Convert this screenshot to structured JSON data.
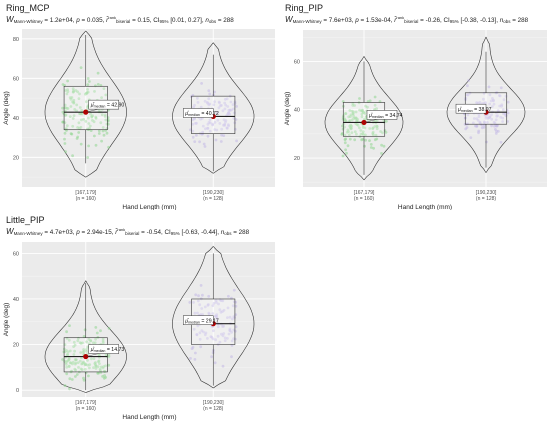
{
  "chart_data": [
    {
      "type": "violin",
      "title": "Ring_MCP",
      "stats": {
        "W_label": "W",
        "W_sub": "Mann-Whitney",
        "W_value": "= 1.2e+04,",
        "p_label": "p",
        "p_value": "= 0.035,",
        "r_sub": "biserial",
        "r_sup": "rank",
        "r_value": "= 0.15,",
        "ci_sub": "95%",
        "ci_value": "[0.01, 0.27],",
        "n_sub": "obs",
        "n_value": "= 288"
      },
      "xlabel": "Hand Length (mm)",
      "ylabel": "Angle (deg)",
      "ylim": [
        5,
        85
      ],
      "yticks": [
        20,
        40,
        60,
        80
      ],
      "categories": [
        "[167,179]\n(n = 160)",
        "[190,230]\n(n = 128)"
      ],
      "groups": [
        {
          "category": "[167,179]",
          "n_label": "(n = 160)",
          "median": 42.9,
          "median_label": "= 42.90",
          "q1": 34,
          "q3": 56,
          "whisker_low": 17,
          "whisker_high": 82,
          "violin_min": 10,
          "violin_max": 84,
          "color": "#8fd68f"
        },
        {
          "category": "[190,230]",
          "n_label": "(n = 128)",
          "median": 40.72,
          "median_label": "= 40.72",
          "q1": 32,
          "q3": 51,
          "whisker_low": 13,
          "whisker_high": 72,
          "violin_min": 12,
          "violin_max": 78,
          "color": "#c2b8e6"
        }
      ]
    },
    {
      "type": "violin",
      "title": "Ring_PIP",
      "stats": {
        "W_label": "W",
        "W_sub": "Mann-Whitney",
        "W_value": "= 7.6e+03,",
        "p_label": "p",
        "p_value": "= 1.53e-04,",
        "r_sub": "biserial",
        "r_sup": "rank",
        "r_value": "= -0.26,",
        "ci_sub": "95%",
        "ci_value": "[-0.38, -0.13],",
        "n_sub": "obs",
        "n_value": "= 288"
      },
      "xlabel": "Hand Length (mm)",
      "ylabel": "Angle (deg)",
      "ylim": [
        8,
        73
      ],
      "yticks": [
        20,
        40,
        60
      ],
      "categories": [
        "[167,179]\n(n = 160)",
        "[190,230]\n(n = 128)"
      ],
      "groups": [
        {
          "category": "[167,179]",
          "n_label": "(n = 160)",
          "median": 34.74,
          "median_label": "= 34.74",
          "q1": 29,
          "q3": 43,
          "whisker_low": 13,
          "whisker_high": 60,
          "violin_min": 11,
          "violin_max": 62,
          "color": "#8fd68f"
        },
        {
          "category": "[190,230]",
          "n_label": "(n = 128)",
          "median": 38.97,
          "median_label": "= 38.97",
          "q1": 34,
          "q3": 47,
          "whisker_low": 16,
          "whisker_high": 64,
          "violin_min": 14,
          "violin_max": 70,
          "color": "#c2b8e6"
        }
      ]
    },
    {
      "type": "violin",
      "title": "Little_PIP",
      "stats": {
        "W_label": "W",
        "W_sub": "Mann-Whitney",
        "W_value": "= 4.7e+03,",
        "p_label": "p",
        "p_value": "= 2.94e-15,",
        "r_sub": "biserial",
        "r_sup": "rank",
        "r_value": "= -0.54,",
        "ci_sub": "95%",
        "ci_value": "[-0.63, -0.44],",
        "n_sub": "obs",
        "n_value": "= 288"
      },
      "xlabel": "Hand Length (mm)",
      "ylabel": "Angle (deg)",
      "ylim": [
        -3,
        65
      ],
      "yticks": [
        0,
        20,
        40,
        60
      ],
      "categories": [
        "[167,179]\n(n = 160)",
        "[190,230]\n(n = 128)"
      ],
      "groups": [
        {
          "category": "[167,179]",
          "n_label": "(n = 160)",
          "median": 14.73,
          "median_label": "= 14.73",
          "q1": 8,
          "q3": 23,
          "whisker_low": 0,
          "whisker_high": 47,
          "violin_min": -1,
          "violin_max": 48,
          "color": "#8fd68f"
        },
        {
          "category": "[190,230]",
          "n_label": "(n = 128)",
          "median": 29.17,
          "median_label": "= 29.17",
          "q1": 20,
          "q3": 40,
          "whisker_low": 2,
          "whisker_high": 60,
          "violin_min": 1,
          "violin_max": 63,
          "color": "#c2b8e6"
        }
      ]
    }
  ],
  "colors": {
    "panel_bg": "#ebebeb",
    "grid": "#ffffff",
    "median_point": "#b30000"
  }
}
